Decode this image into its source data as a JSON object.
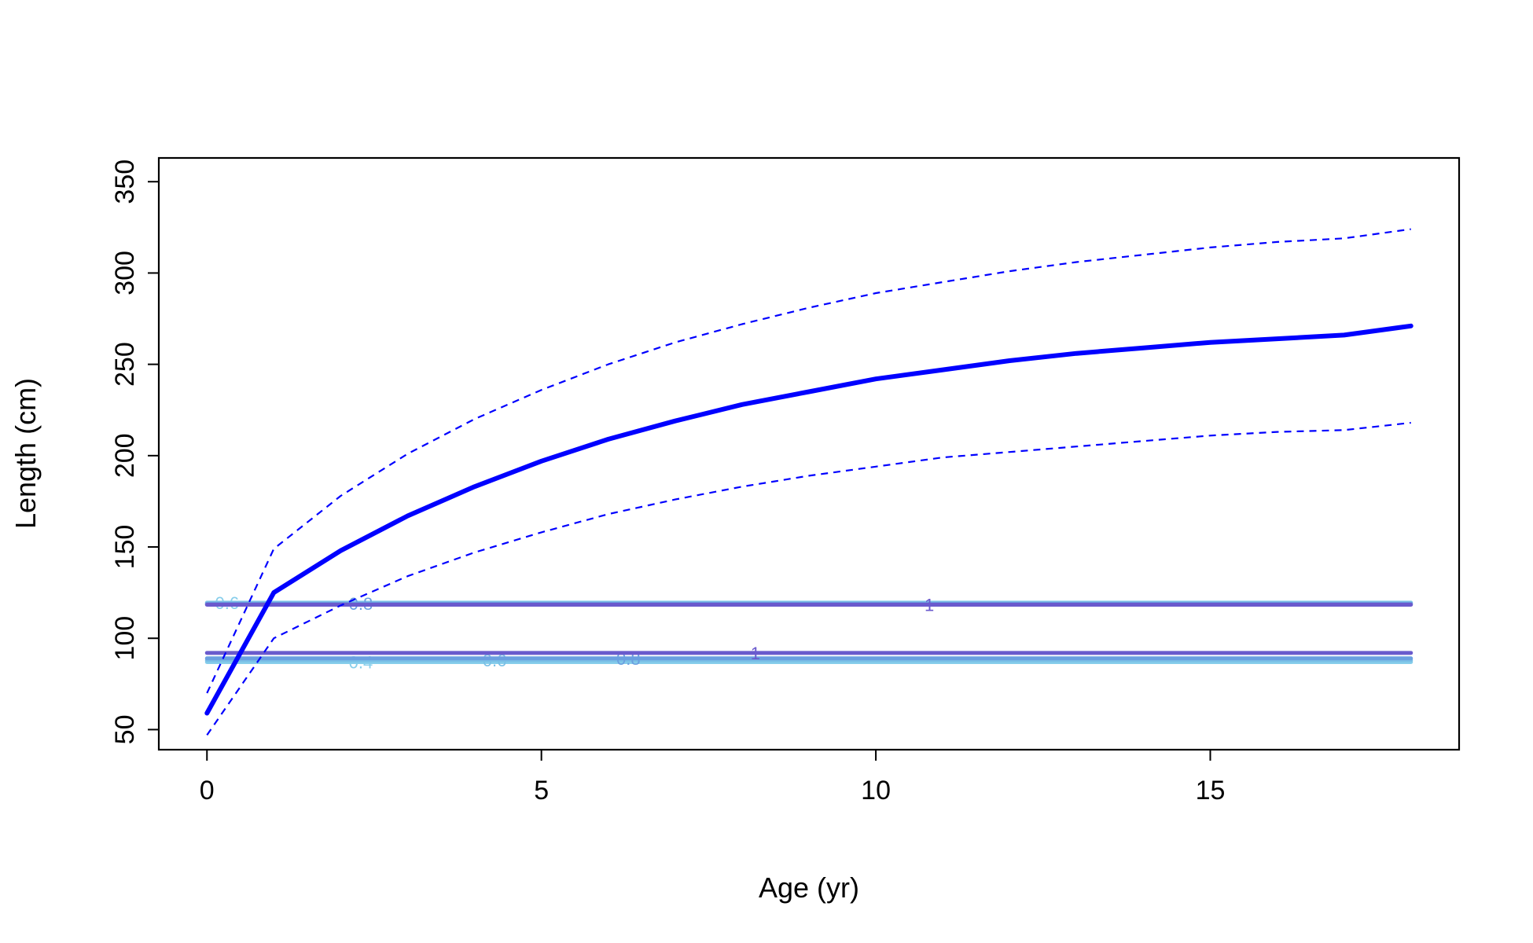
{
  "chart_data": {
    "type": "line",
    "title": "",
    "xlabel": "Age (yr)",
    "ylabel": "Length (cm)",
    "xlim": [
      -0.72,
      18.72
    ],
    "ylim": [
      39,
      363
    ],
    "x_ticks": [
      0,
      5,
      10,
      15
    ],
    "x_tick_labels": [
      "0",
      "5",
      "10",
      "15"
    ],
    "y_ticks": [
      50,
      100,
      150,
      200,
      250,
      300,
      350
    ],
    "y_tick_labels": [
      "50",
      "100",
      "150",
      "200",
      "250",
      "300",
      "350"
    ],
    "grid": false,
    "legend": "none",
    "series": [
      {
        "role": "mean",
        "style": "solid-thick",
        "color": "#0000ff",
        "x": [
          0,
          1,
          2,
          3,
          4,
          5,
          6,
          7,
          8,
          9,
          10,
          11,
          12,
          13,
          14,
          15,
          16,
          17,
          18
        ],
        "y": [
          59,
          125,
          148,
          167,
          183,
          197,
          209,
          219,
          228,
          235,
          242,
          247,
          252,
          256,
          259,
          262,
          264,
          266,
          271
        ]
      },
      {
        "role": "upper",
        "style": "dashed",
        "color": "#0000ff",
        "x": [
          0,
          1,
          2,
          3,
          4,
          5,
          6,
          7,
          8,
          9,
          10,
          11,
          12,
          13,
          14,
          15,
          16,
          17,
          18
        ],
        "y": [
          70,
          149,
          178,
          201,
          220,
          236,
          250,
          262,
          272,
          281,
          289,
          295,
          301,
          306,
          310,
          314,
          317,
          319,
          324
        ]
      },
      {
        "role": "lower",
        "style": "dashed",
        "color": "#0000ff",
        "x": [
          0,
          1,
          2,
          3,
          4,
          5,
          6,
          7,
          8,
          9,
          10,
          11,
          12,
          13,
          14,
          15,
          16,
          17,
          18
        ],
        "y": [
          47,
          100,
          118,
          134,
          147,
          158,
          168,
          176,
          183,
          189,
          194,
          199,
          202,
          205,
          208,
          211,
          213,
          214,
          218
        ]
      }
    ],
    "contours": [
      {
        "y": 119.5,
        "color": "#87ceeb",
        "label": "0.6",
        "label_x": 0.3
      },
      {
        "y": 119.0,
        "color": "#6a9fe0",
        "label": "0.8",
        "label_x": 2.3
      },
      {
        "y": 118.4,
        "color": "#6a5acd",
        "label": "1",
        "label_x": 10.8
      },
      {
        "y": 87.0,
        "color": "#87ceeb",
        "label": "0.4",
        "label_x": 2.3
      },
      {
        "y": 88.0,
        "color": "#7ac0e6",
        "label": "0.6",
        "label_x": 4.3
      },
      {
        "y": 89.0,
        "color": "#6a9fe0",
        "label": "0.8",
        "label_x": 6.3
      },
      {
        "y": 92.0,
        "color": "#6a5acd",
        "label": "1",
        "label_x": 8.2
      }
    ]
  }
}
